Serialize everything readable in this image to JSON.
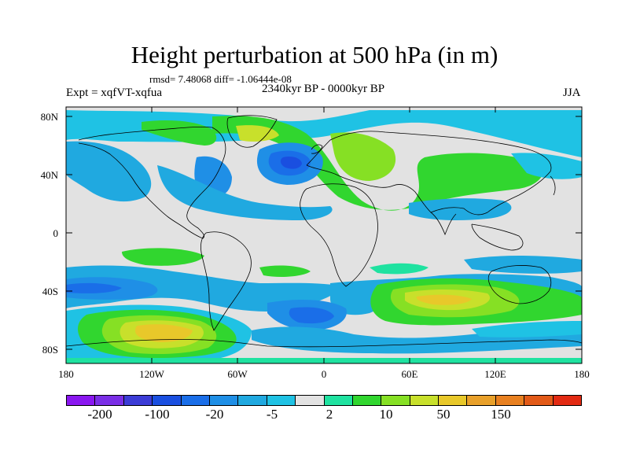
{
  "header": {
    "title": "Height perturbation at 500 hPa (in m)",
    "stats": "rmsd= 7.48068 diff= -1.06444e-08",
    "experiment": "Expt = xqfVT-xqfua",
    "period": "2340kyr BP - 0000kyr BP",
    "season": "JJA"
  },
  "axes": {
    "lat_labels": [
      "80N",
      "40N",
      "0",
      "40S",
      "80S"
    ],
    "lon_labels": [
      "180",
      "120W",
      "60W",
      "0",
      "60E",
      "120E",
      "180"
    ]
  },
  "colorbar": {
    "colors": [
      "#8a17f0",
      "#7a2ee6",
      "#3c3cd6",
      "#1a4fe0",
      "#1a6ee8",
      "#1f8fe6",
      "#20a9e0",
      "#1fc2e4",
      "#e2e2e2",
      "#1fe2a0",
      "#31d62f",
      "#86e024",
      "#c8e02b",
      "#e8c82a",
      "#e8a02a",
      "#e88020",
      "#e25a18",
      "#e22a12"
    ],
    "labels": [
      "-200",
      "-100",
      "-20",
      "-5",
      "2",
      "10",
      "50",
      "150"
    ]
  },
  "map": {
    "background": "#e2e2e2",
    "colors": {
      "light_blue": "#20a9e0",
      "cyan": "#1fc2e4",
      "mid_blue": "#1f8fe6",
      "blue": "#1a6ee8",
      "dark_blue": "#1a4fe0",
      "teal": "#1fe2a0",
      "green": "#31d62f",
      "light_green": "#86e024",
      "yellow_green": "#c8e02b",
      "orange": "#e8c82a",
      "dark_orange": "#e8a02a"
    }
  }
}
